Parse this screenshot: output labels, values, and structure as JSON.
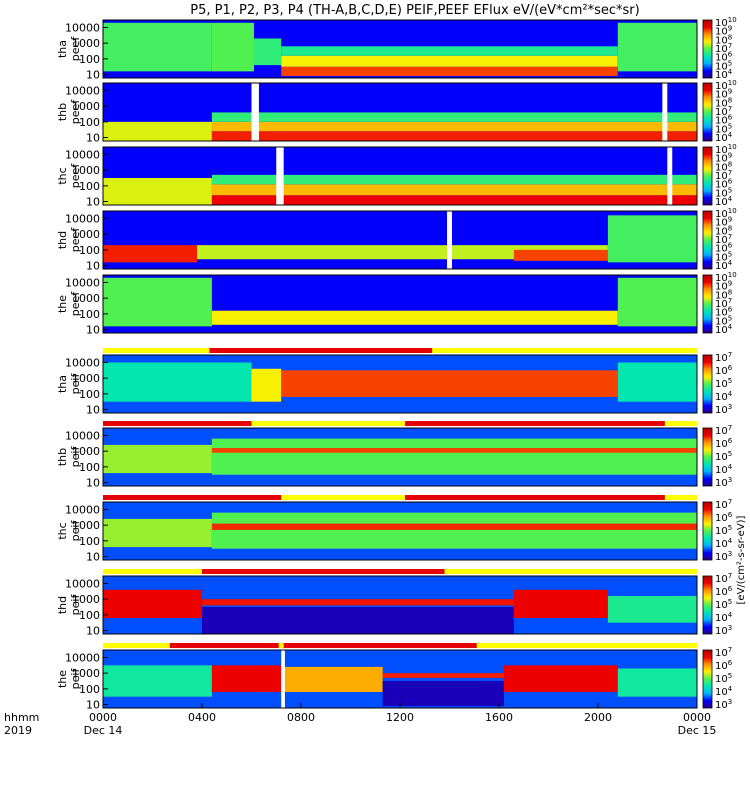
{
  "chart_data": {
    "type": "heatmap",
    "title": "P5, P1, P2, P3, P4 (TH-A,B,C,D,E) PEIF,PEEF EFlux eV/(eV*cm²*sec*sr)",
    "colorbar_label": "[eV/(cm²-s-sr-eV)]",
    "colorscale": [
      "#2b0088",
      "#0000ff",
      "#00b4ff",
      "#00e6b4",
      "#50f050",
      "#fff000",
      "#ff9600",
      "#f00000",
      "#b40000"
    ],
    "x_axis": {
      "row_labels": [
        "hhmm",
        "2019"
      ],
      "ticks": [
        "0000",
        "0400",
        "0800",
        "1200",
        "1600",
        "2000",
        "0000"
      ],
      "hours": [
        0,
        4,
        8,
        12,
        16,
        20,
        24
      ],
      "dates": [
        {
          "hour": 0,
          "label": "Dec 14"
        },
        {
          "hour": 24,
          "label": "Dec 15"
        }
      ],
      "range_hours": [
        0,
        24
      ]
    },
    "y_axis": {
      "scale": "log",
      "range": [
        6,
        30000
      ],
      "ticks": [
        10,
        100,
        1000,
        10000
      ],
      "tick_labels": [
        "10",
        "100",
        "1000",
        "10000"
      ]
    },
    "panels": [
      {
        "probe": "tha",
        "species": "peef",
        "label_lines": [
          "tha",
          "peef"
        ],
        "cbar_exp_range": [
          4,
          10
        ],
        "bands": [
          {
            "t0": 0,
            "t1": 4.4,
            "lo": 1.2,
            "hi": 4.3,
            "level": 0.48
          },
          {
            "t0": 4.4,
            "t1": 6.1,
            "lo": 1.2,
            "hi": 4.3,
            "level": 0.5
          },
          {
            "t0": 6.1,
            "t1": 7.2,
            "lo": 1.6,
            "hi": 3.3,
            "level": 0.45
          },
          {
            "t0": 7.2,
            "t1": 20.8,
            "lo": 0.9,
            "hi": 1.5,
            "level": 0.82
          },
          {
            "t0": 7.2,
            "t1": 20.8,
            "lo": 1.5,
            "hi": 2.2,
            "level": 0.62
          },
          {
            "t0": 7.2,
            "t1": 20.8,
            "lo": 2.2,
            "hi": 2.8,
            "level": 0.42
          },
          {
            "t0": 20.8,
            "t1": 24,
            "lo": 1.2,
            "hi": 4.3,
            "level": 0.48
          }
        ],
        "gaps": [],
        "bar_above": []
      },
      {
        "probe": "thb",
        "species": "peef",
        "label_lines": [
          "thb",
          "peef"
        ],
        "cbar_exp_range": [
          4,
          10
        ],
        "bands": [
          {
            "t0": 0,
            "t1": 4.4,
            "lo": 0.8,
            "hi": 2.0,
            "level": 0.6
          },
          {
            "t0": 4.4,
            "t1": 24,
            "lo": 0.8,
            "hi": 1.4,
            "level": 0.85
          },
          {
            "t0": 4.4,
            "t1": 24,
            "lo": 1.4,
            "hi": 2.0,
            "level": 0.7
          },
          {
            "t0": 4.4,
            "t1": 24,
            "lo": 2.0,
            "hi": 2.6,
            "level": 0.45
          }
        ],
        "gaps": [
          [
            6.0,
            6.3
          ],
          [
            22.6,
            22.8
          ]
        ],
        "bar_above": []
      },
      {
        "probe": "thc",
        "species": "peef",
        "label_lines": [
          "thc",
          "peef"
        ],
        "cbar_exp_range": [
          4,
          10
        ],
        "bands": [
          {
            "t0": 0,
            "t1": 4.4,
            "lo": 0.8,
            "hi": 2.5,
            "level": 0.6
          },
          {
            "t0": 4.4,
            "t1": 24,
            "lo": 0.8,
            "hi": 1.4,
            "level": 0.88
          },
          {
            "t0": 4.4,
            "t1": 24,
            "lo": 1.4,
            "hi": 2.1,
            "level": 0.7
          },
          {
            "t0": 4.4,
            "t1": 24,
            "lo": 2.1,
            "hi": 2.7,
            "level": 0.45
          }
        ],
        "gaps": [
          [
            7.0,
            7.3
          ],
          [
            22.8,
            23.0
          ]
        ],
        "bar_above": []
      },
      {
        "probe": "thd",
        "species": "peef",
        "label_lines": [
          "thd",
          "peef"
        ],
        "cbar_exp_range": [
          4,
          10
        ],
        "bands": [
          {
            "t0": 0,
            "t1": 3.8,
            "lo": 1.2,
            "hi": 2.3,
            "level": 0.85
          },
          {
            "t0": 3.8,
            "t1": 20.4,
            "lo": 1.4,
            "hi": 2.3,
            "level": 0.58
          },
          {
            "t0": 16.6,
            "t1": 20.4,
            "lo": 1.3,
            "hi": 2.0,
            "level": 0.82
          },
          {
            "t0": 20.4,
            "t1": 24,
            "lo": 1.2,
            "hi": 4.2,
            "level": 0.48
          }
        ],
        "gaps": [
          [
            13.9,
            14.1
          ]
        ],
        "bar_above": []
      },
      {
        "probe": "the",
        "species": "peef",
        "label_lines": [
          "the",
          "peef"
        ],
        "cbar_exp_range": [
          4,
          10
        ],
        "bands": [
          {
            "t0": 0,
            "t1": 4.4,
            "lo": 1.2,
            "hi": 4.3,
            "level": 0.5
          },
          {
            "t0": 4.4,
            "t1": 20.8,
            "lo": 1.3,
            "hi": 2.2,
            "level": 0.62
          },
          {
            "t0": 20.8,
            "t1": 24,
            "lo": 1.2,
            "hi": 4.3,
            "level": 0.5
          }
        ],
        "gaps": [],
        "bar_above": []
      },
      {
        "probe": "tha",
        "species": "peif",
        "label_lines": [
          "tha",
          "peif"
        ],
        "cbar_exp_range": [
          3,
          7
        ],
        "bands": [
          {
            "t0": 0,
            "t1": 6.0,
            "lo": 1.5,
            "hi": 4.0,
            "level": 0.38
          },
          {
            "t0": 6.0,
            "t1": 7.2,
            "lo": 1.5,
            "hi": 3.6,
            "level": 0.62
          },
          {
            "t0": 7.2,
            "t1": 20.8,
            "lo": 1.8,
            "hi": 3.5,
            "level": 0.82
          },
          {
            "t0": 20.8,
            "t1": 24,
            "lo": 1.5,
            "hi": 4.0,
            "level": 0.38
          }
        ],
        "gaps": [],
        "bar_above": [
          [
            4.3,
            13.3
          ]
        ]
      },
      {
        "probe": "thb",
        "species": "peif",
        "label_lines": [
          "thb",
          "peif"
        ],
        "cbar_exp_range": [
          3,
          7
        ],
        "bands": [
          {
            "t0": 0,
            "t1": 4.4,
            "lo": 1.6,
            "hi": 3.4,
            "level": 0.55
          },
          {
            "t0": 4.4,
            "t1": 24,
            "lo": 1.5,
            "hi": 3.8,
            "level": 0.5
          },
          {
            "t0": 4.4,
            "t1": 24,
            "lo": 2.9,
            "hi": 3.2,
            "level": 0.82
          }
        ],
        "gaps": [],
        "bar_above": [
          [
            0,
            6.0
          ],
          [
            12.2,
            22.7
          ]
        ]
      },
      {
        "probe": "thc",
        "species": "peif",
        "label_lines": [
          "thc",
          "peif"
        ],
        "cbar_exp_range": [
          3,
          7
        ],
        "bands": [
          {
            "t0": 0,
            "t1": 4.4,
            "lo": 1.6,
            "hi": 3.4,
            "level": 0.55
          },
          {
            "t0": 4.4,
            "t1": 24,
            "lo": 1.5,
            "hi": 3.8,
            "level": 0.5
          },
          {
            "t0": 4.4,
            "t1": 24,
            "lo": 2.7,
            "hi": 3.1,
            "level": 0.84
          }
        ],
        "gaps": [],
        "bar_above": [
          [
            0,
            7.2
          ],
          [
            12.2,
            22.7
          ]
        ]
      },
      {
        "probe": "thd",
        "species": "peif",
        "label_lines": [
          "thd",
          "peif"
        ],
        "cbar_exp_range": [
          3,
          7
        ],
        "bands": [
          {
            "t0": 0,
            "t1": 4.0,
            "lo": 1.8,
            "hi": 3.6,
            "level": 0.88
          },
          {
            "t0": 4.0,
            "t1": 16.6,
            "lo": 2.6,
            "hi": 3.0,
            "level": 0.86
          },
          {
            "t0": 4.0,
            "t1": 16.6,
            "lo": 0.8,
            "hi": 2.5,
            "level": 0.05
          },
          {
            "t0": 16.6,
            "t1": 20.4,
            "lo": 1.8,
            "hi": 3.6,
            "level": 0.88
          },
          {
            "t0": 20.4,
            "t1": 24,
            "lo": 1.5,
            "hi": 3.2,
            "level": 0.42
          }
        ],
        "gaps": [],
        "bar_above": [
          [
            4.0,
            13.8
          ]
        ]
      },
      {
        "probe": "the",
        "species": "peif",
        "label_lines": [
          "the",
          "peif"
        ],
        "cbar_exp_range": [
          3,
          7
        ],
        "bands": [
          {
            "t0": 0,
            "t1": 4.4,
            "lo": 1.5,
            "hi": 3.5,
            "level": 0.4
          },
          {
            "t0": 4.4,
            "t1": 7.2,
            "lo": 1.8,
            "hi": 3.5,
            "level": 0.88
          },
          {
            "t0": 7.2,
            "t1": 11.3,
            "lo": 1.8,
            "hi": 3.4,
            "level": 0.72
          },
          {
            "t0": 11.3,
            "t1": 16.2,
            "lo": 2.7,
            "hi": 3.0,
            "level": 0.85
          },
          {
            "t0": 11.3,
            "t1": 16.2,
            "lo": 0.9,
            "hi": 2.5,
            "level": 0.05
          },
          {
            "t0": 16.2,
            "t1": 20.8,
            "lo": 1.8,
            "hi": 3.5,
            "level": 0.88
          },
          {
            "t0": 20.8,
            "t1": 24,
            "lo": 1.5,
            "hi": 3.3,
            "level": 0.4
          }
        ],
        "gaps": [
          [
            7.2,
            7.35
          ]
        ],
        "bar_above": [
          [
            2.7,
            7.1
          ],
          [
            7.3,
            15.1
          ]
        ]
      }
    ]
  }
}
